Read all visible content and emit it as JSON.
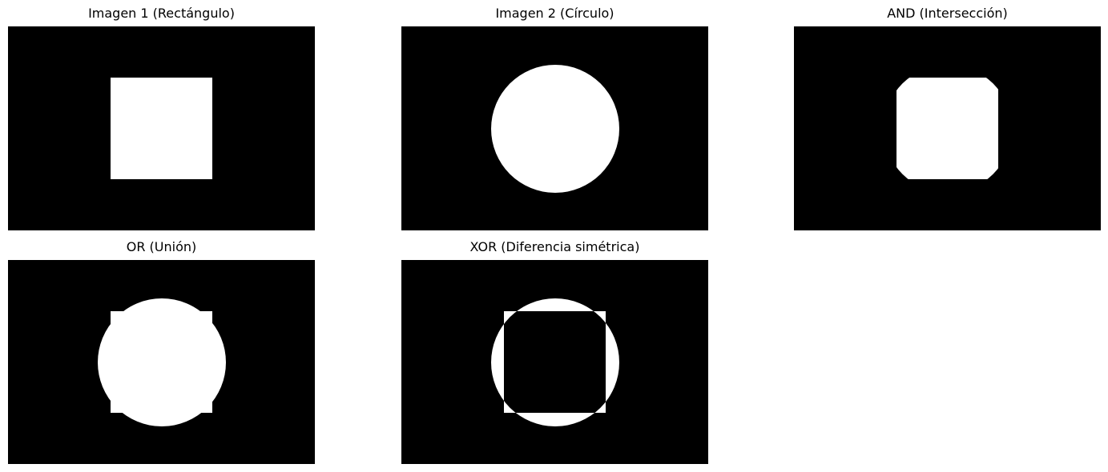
{
  "panels": [
    {
      "title": "Imagen 1 (Rectángulo)",
      "shape": "rectangle"
    },
    {
      "title": "Imagen 2 (Círculo)",
      "shape": "circle"
    },
    {
      "title": "AND (Intersección)",
      "shape": "intersection"
    },
    {
      "title": "OR (Unión)",
      "shape": "union"
    },
    {
      "title": "XOR (Diferencia simétrica)",
      "shape": "symmetric-difference"
    }
  ],
  "colors": {
    "background": "#000000",
    "foreground": "#ffffff"
  }
}
